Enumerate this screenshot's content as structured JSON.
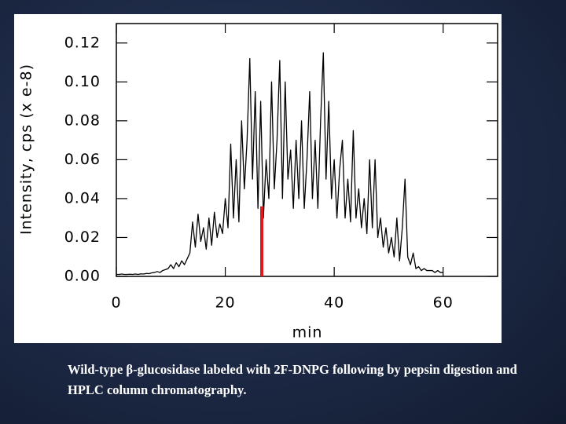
{
  "chart_data": {
    "type": "line",
    "y_label": "Intensity, cps (x e-8)",
    "x_label": "min",
    "caption": "Wild-type β-glucosidase labeled with 2F-DNPG following by pepsin digestion and HPLC column chromatography.",
    "color": "#000000",
    "x": [
      0,
      0.5,
      1,
      1.5,
      2,
      2.5,
      3,
      3.5,
      4,
      4.5,
      5,
      5.5,
      6,
      6.5,
      7,
      7.5,
      8,
      8.5,
      9,
      9.5,
      10,
      10.5,
      11,
      11.5,
      12,
      12.5,
      13,
      13.5,
      14,
      14.5,
      15,
      15.5,
      16,
      16.5,
      17,
      17.5,
      18,
      18.5,
      19,
      19.5,
      20,
      20.5,
      21,
      21.5,
      22,
      22.5,
      23,
      23.5,
      24,
      24.5,
      25,
      25.5,
      26,
      26.5,
      27,
      27.5,
      28,
      28.5,
      29,
      29.5,
      30,
      30.5,
      31,
      31.5,
      32,
      32.5,
      33,
      33.5,
      34,
      34.5,
      35,
      35.5,
      36,
      36.5,
      37,
      37.5,
      38,
      38.5,
      39,
      39.5,
      40,
      40.5,
      41,
      41.5,
      42,
      42.5,
      43,
      43.5,
      44,
      44.5,
      45,
      45.5,
      46,
      46.5,
      47,
      47.5,
      48,
      48.5,
      49,
      49.5,
      50,
      50.5,
      51,
      51.5,
      52,
      52.5,
      53,
      53.5,
      54,
      54.5,
      55,
      55.5,
      56,
      56.5,
      57,
      57.5,
      58,
      58.5,
      59,
      59.5,
      60
    ],
    "values": [
      0.001,
      0.001,
      0.0012,
      0.001,
      0.001,
      0.0011,
      0.001,
      0.0012,
      0.001,
      0.0013,
      0.0012,
      0.0015,
      0.0014,
      0.0018,
      0.002,
      0.0025,
      0.002,
      0.003,
      0.0035,
      0.004,
      0.006,
      0.004,
      0.007,
      0.005,
      0.008,
      0.006,
      0.009,
      0.012,
      0.028,
      0.015,
      0.032,
      0.018,
      0.025,
      0.014,
      0.03,
      0.016,
      0.033,
      0.02,
      0.027,
      0.022,
      0.04,
      0.025,
      0.068,
      0.03,
      0.06,
      0.028,
      0.08,
      0.045,
      0.07,
      0.112,
      0.05,
      0.095,
      0.035,
      0.09,
      0.03,
      0.06,
      0.04,
      0.1,
      0.045,
      0.07,
      0.111,
      0.04,
      0.1,
      0.05,
      0.065,
      0.035,
      0.07,
      0.04,
      0.08,
      0.035,
      0.06,
      0.095,
      0.04,
      0.07,
      0.035,
      0.08,
      0.115,
      0.05,
      0.09,
      0.04,
      0.06,
      0.03,
      0.055,
      0.07,
      0.03,
      0.05,
      0.028,
      0.075,
      0.03,
      0.045,
      0.025,
      0.04,
      0.022,
      0.06,
      0.025,
      0.06,
      0.02,
      0.03,
      0.015,
      0.025,
      0.012,
      0.02,
      0.01,
      0.03,
      0.008,
      0.025,
      0.05,
      0.01,
      0.006,
      0.012,
      0.004,
      0.005,
      0.003,
      0.004,
      0.003,
      0.003,
      0.003,
      0.002,
      0.003,
      0.002,
      0.002
    ],
    "highlight_x": 26.7,
    "highlight_value": 0.036,
    "highlight_color": "#e0191b",
    "xlim": [
      0,
      70
    ],
    "xticks": [
      0,
      20,
      40,
      60
    ],
    "ylim": [
      0,
      0.13
    ],
    "yticks": [
      {
        "value": 0,
        "label": "0.00"
      },
      0.02,
      0.04,
      0.06,
      0.08,
      {
        "value": 0.1,
        "label": "0.10"
      },
      0.12
    ],
    "grid": false
  }
}
